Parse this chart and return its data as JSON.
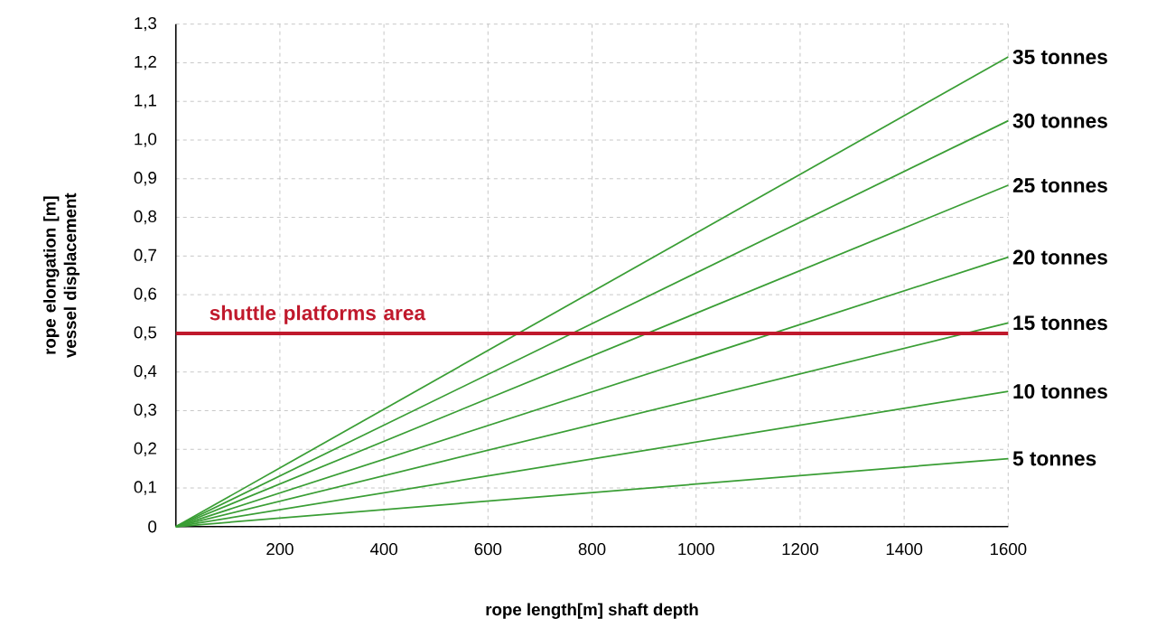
{
  "chart_data": {
    "type": "line",
    "xlabel": "rope length[m] shaft depth",
    "ylabel": "rope elongation [m] vessel displacement",
    "x": [
      0,
      1600
    ],
    "series": [
      {
        "name": "35 tonnes",
        "color": "#3a9e35",
        "values": [
          0,
          1.215
        ]
      },
      {
        "name": "30 tonnes",
        "color": "#3a9e35",
        "values": [
          0,
          1.05
        ]
      },
      {
        "name": "25 tonnes",
        "color": "#3a9e35",
        "values": [
          0,
          0.883
        ]
      },
      {
        "name": "20 tonnes",
        "color": "#3a9e35",
        "values": [
          0,
          0.697
        ]
      },
      {
        "name": "15 tonnes",
        "color": "#3a9e35",
        "values": [
          0,
          0.527
        ]
      },
      {
        "name": "10 tonnes",
        "color": "#3a9e35",
        "values": [
          0,
          0.35
        ]
      },
      {
        "name": "5 tonnes",
        "color": "#3a9e35",
        "values": [
          0,
          0.176
        ]
      }
    ],
    "xlim": [
      0,
      1600
    ],
    "xticks": [
      200,
      400,
      600,
      800,
      1000,
      1200,
      1400,
      1600
    ],
    "ylim": [
      0,
      1.3
    ],
    "yticks": [
      0,
      {
        "value": 0.1,
        "label": "0,1"
      },
      {
        "value": 0.2,
        "label": "0,2"
      },
      {
        "value": 0.3,
        "label": "0,3"
      },
      {
        "value": 0.4,
        "label": "0,4"
      },
      {
        "value": 0.5,
        "label": "0,5"
      },
      {
        "value": 0.6,
        "label": "0,6"
      },
      {
        "value": 0.7,
        "label": "0,7"
      },
      {
        "value": 0.8,
        "label": "0,8"
      },
      {
        "value": 0.9,
        "label": "0,9"
      },
      {
        "value": 1.0,
        "label": "1,0"
      },
      {
        "value": 1.1,
        "label": "1,1"
      },
      {
        "value": 1.2,
        "label": "1,2"
      },
      {
        "value": 1.3,
        "label": "1,3"
      }
    ],
    "ref_lines": [
      {
        "axis": "y",
        "value": 0.5,
        "label": "shuttle platforms area",
        "color": "#c0192c"
      }
    ],
    "grid": true,
    "legend": false,
    "marker": "none",
    "line_style": "solid"
  }
}
